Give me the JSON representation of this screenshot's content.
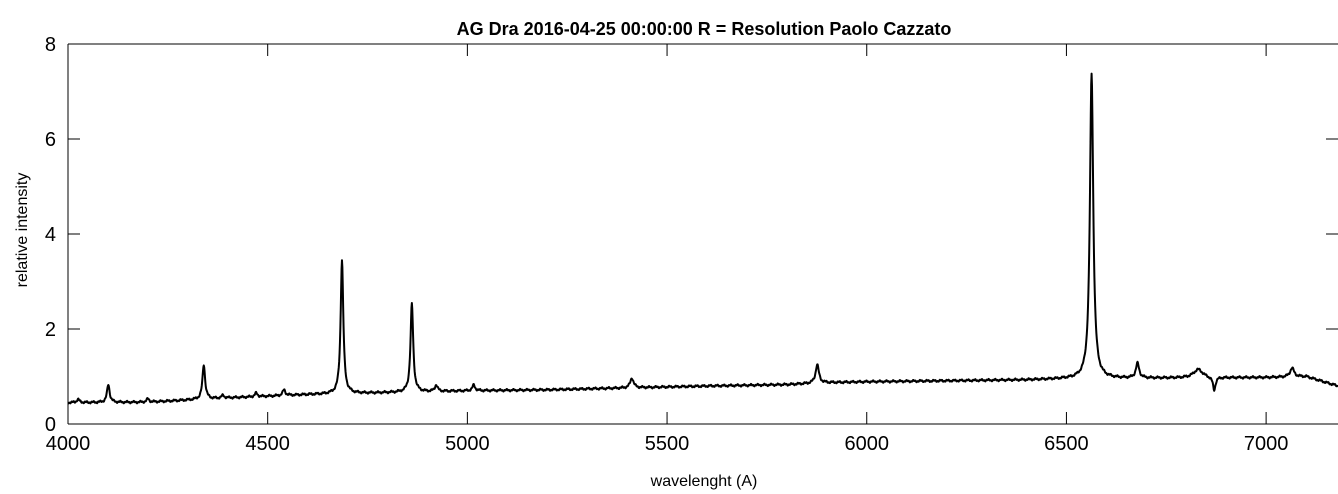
{
  "chart_data": {
    "type": "line",
    "title": "AG Dra   2016-04-25   00:00:00   R = Resolution   Paolo Cazzato",
    "xlabel": "wavelenght (A)",
    "ylabel": "relative intensity",
    "xlim": [
      4000,
      7180
    ],
    "ylim": [
      0,
      8
    ],
    "xticks": [
      4000,
      4500,
      5000,
      5500,
      6000,
      6500,
      7000
    ],
    "yticks": [
      0,
      2,
      4,
      6,
      8
    ],
    "grid": false,
    "legend": "none",
    "color": "#000000",
    "continuum": [
      [
        4000,
        0.45
      ],
      [
        4200,
        0.46
      ],
      [
        4400,
        0.55
      ],
      [
        4600,
        0.62
      ],
      [
        4800,
        0.66
      ],
      [
        5000,
        0.7
      ],
      [
        5200,
        0.72
      ],
      [
        5400,
        0.76
      ],
      [
        5600,
        0.8
      ],
      [
        5800,
        0.83
      ],
      [
        5900,
        0.87
      ],
      [
        6000,
        0.89
      ],
      [
        6200,
        0.91
      ],
      [
        6400,
        0.93
      ],
      [
        6500,
        0.95
      ],
      [
        6800,
        0.97
      ],
      [
        7000,
        0.98
      ],
      [
        7100,
        1.0
      ],
      [
        7180,
        0.8
      ]
    ],
    "lines": [
      {
        "x": 4025,
        "peak": 0.52,
        "width": 4
      },
      {
        "x": 4101,
        "peak": 0.83,
        "width": 4
      },
      {
        "x": 4200,
        "peak": 0.53,
        "width": 4
      },
      {
        "x": 4340,
        "peak": 1.25,
        "width": 4
      },
      {
        "x": 4388,
        "peak": 0.6,
        "width": 4
      },
      {
        "x": 4471,
        "peak": 0.65,
        "width": 4
      },
      {
        "x": 4541,
        "peak": 0.72,
        "width": 4
      },
      {
        "x": 4686,
        "peak": 3.45,
        "width": 4
      },
      {
        "x": 4861,
        "peak": 2.53,
        "width": 4
      },
      {
        "x": 4922,
        "peak": 0.82,
        "width": 4
      },
      {
        "x": 5016,
        "peak": 0.82,
        "width": 4
      },
      {
        "x": 5412,
        "peak": 0.97,
        "width": 5
      },
      {
        "x": 5876,
        "peak": 1.25,
        "width": 5
      },
      {
        "x": 6563,
        "peak": 7.38,
        "width": 5
      },
      {
        "x": 6678,
        "peak": 1.27,
        "width": 5
      },
      {
        "x": 6830,
        "peak": 1.15,
        "width": 14
      },
      {
        "x": 7065,
        "peak": 1.18,
        "width": 6
      }
    ],
    "absorptions": [
      {
        "x": 6870,
        "depth": 0.28,
        "width": 4
      }
    ]
  }
}
